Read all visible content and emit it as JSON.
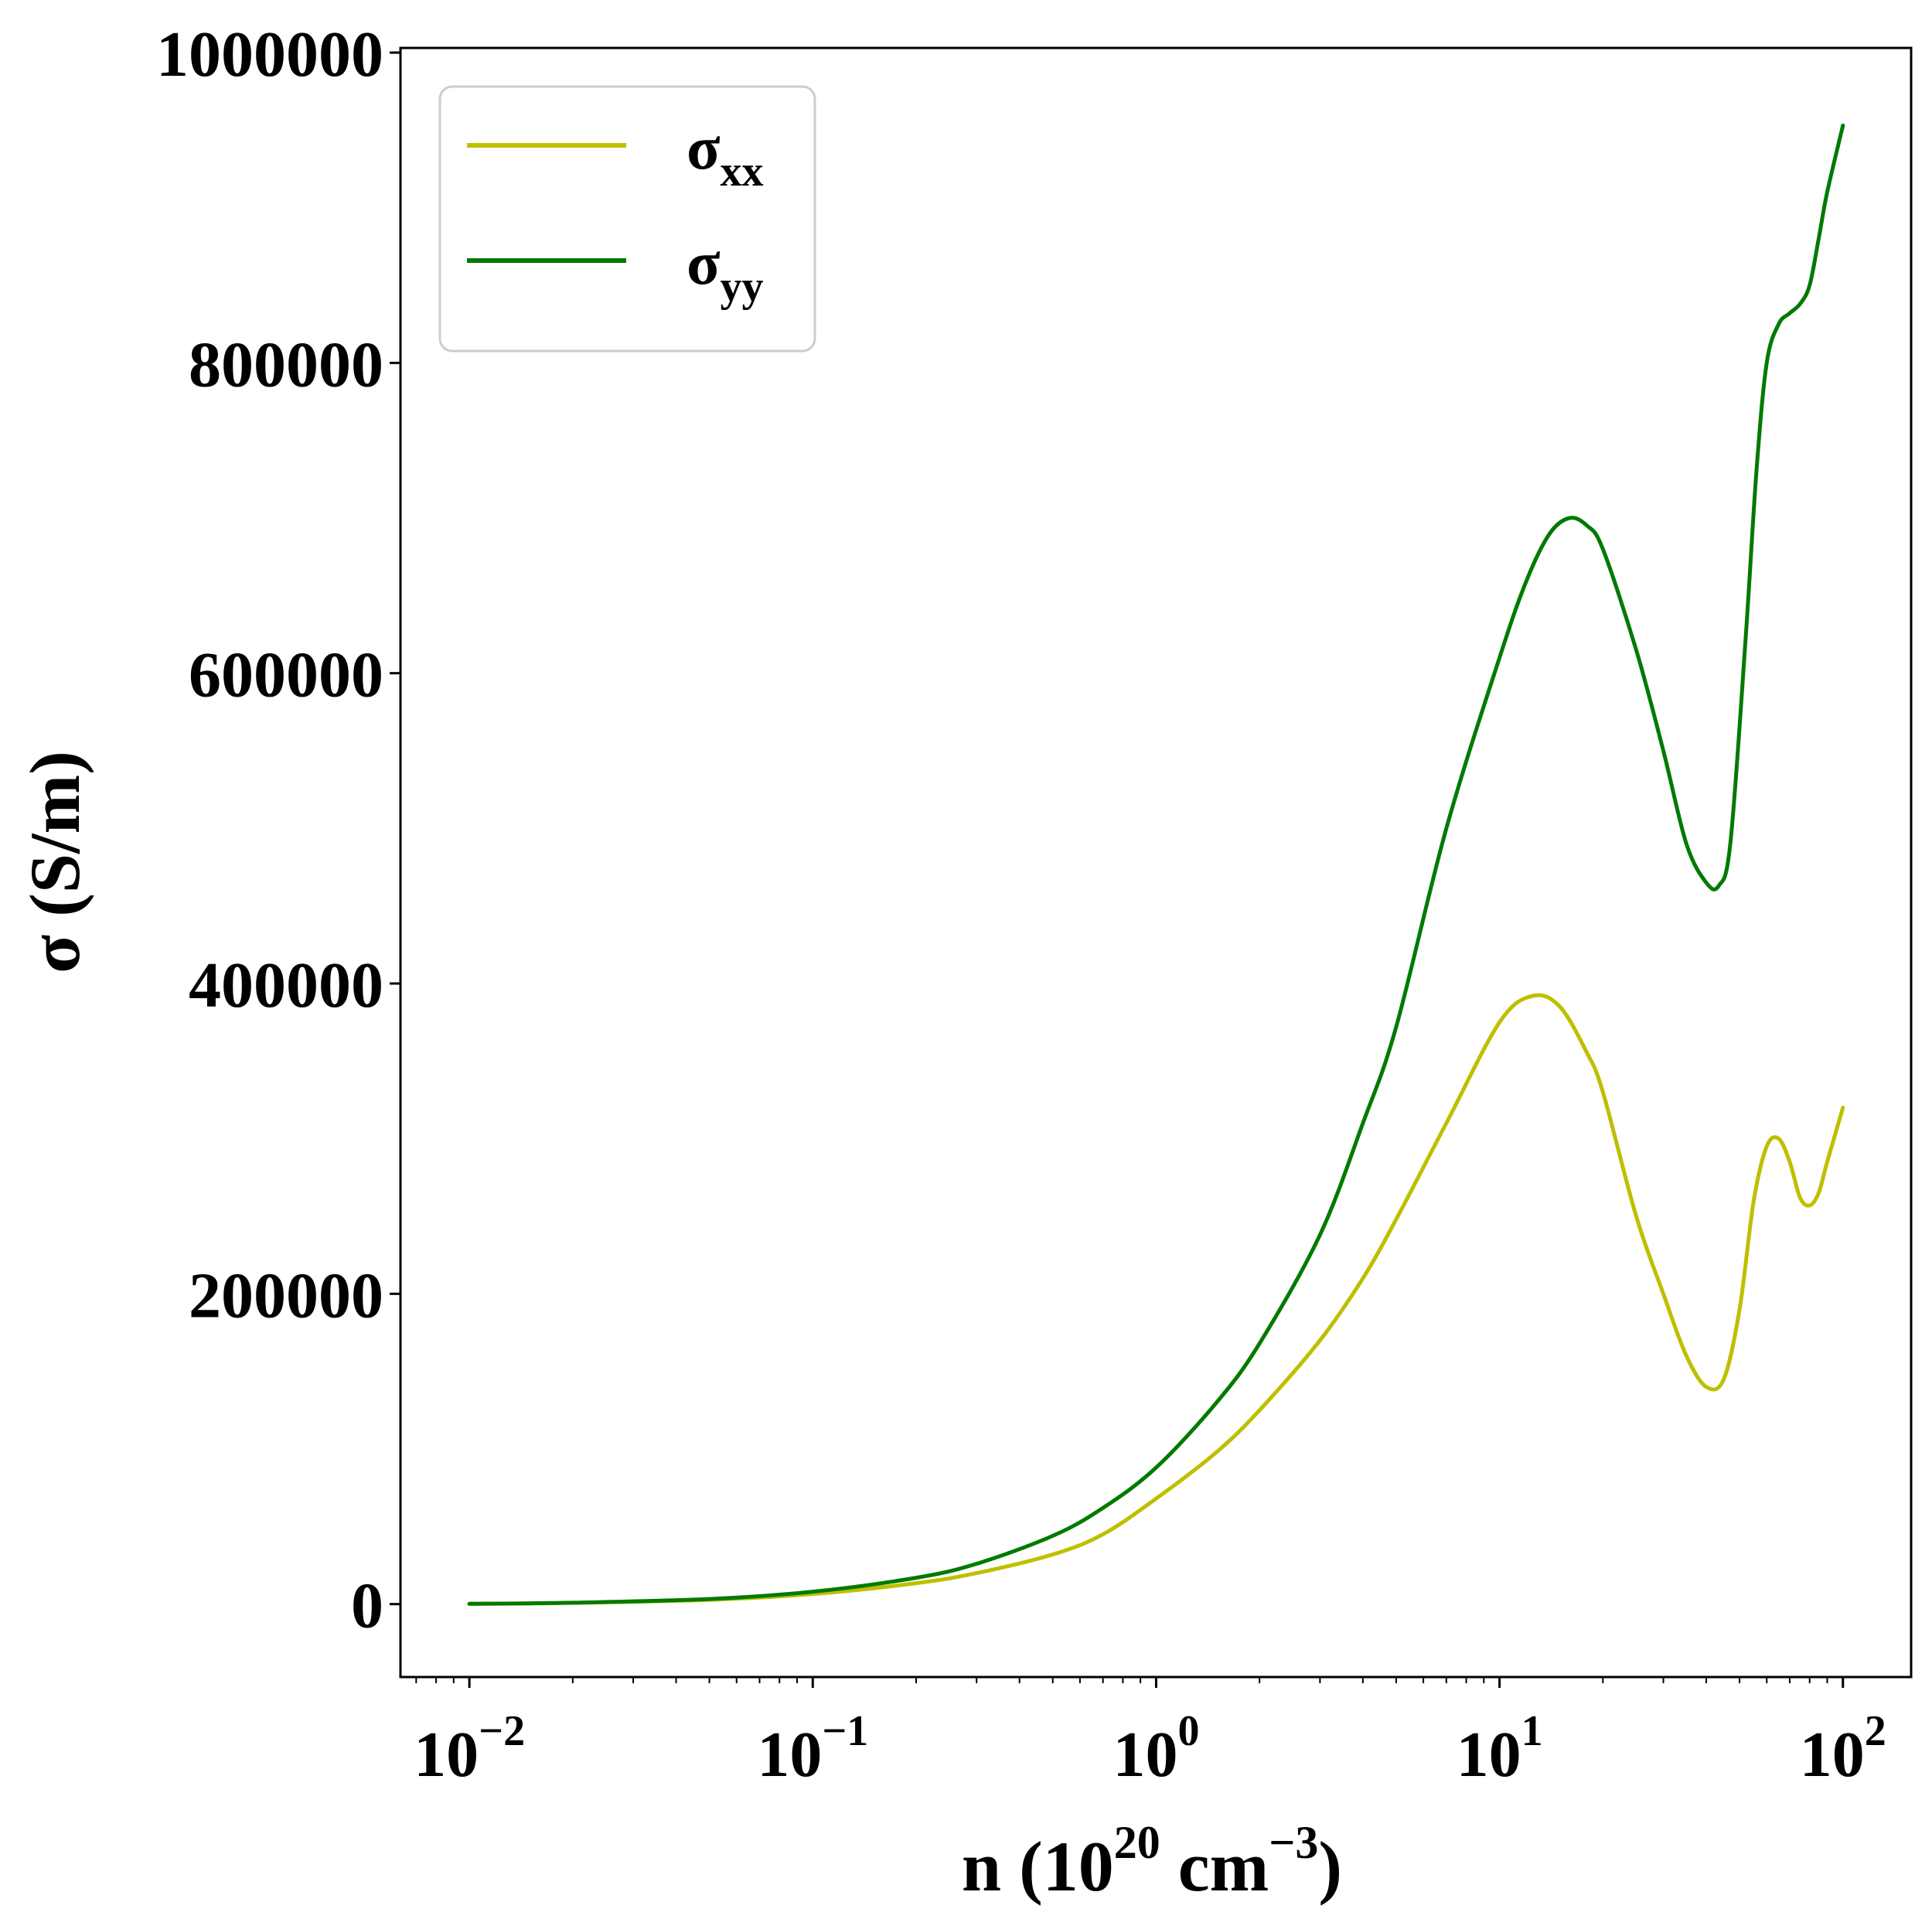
{
  "chart_data": {
    "type": "line",
    "xscale": "log",
    "xlabel": {
      "base": "n (10",
      "exp1": "20",
      "mid": " cm",
      "exp2": "−3",
      "tail": ")"
    },
    "ylabel": "σ (S/m)",
    "xlim": [
      0.0063,
      158
    ],
    "ylim": [
      -47000,
      1003000
    ],
    "grid": false,
    "legend_position": "top-left",
    "y_ticks": [
      {
        "value": 0,
        "label": "0"
      },
      {
        "value": 200000,
        "label": "200000"
      },
      {
        "value": 400000,
        "label": "400000"
      },
      {
        "value": 600000,
        "label": "600000"
      },
      {
        "value": 800000,
        "label": "800000"
      },
      {
        "value": 1000000,
        "label": "1000000"
      }
    ],
    "x_ticks": [
      {
        "value": 0.01,
        "base": "10",
        "exp": "−2"
      },
      {
        "value": 0.1,
        "base": "10",
        "exp": "−1"
      },
      {
        "value": 1,
        "base": "10",
        "exp": "0"
      },
      {
        "value": 10,
        "base": "10",
        "exp": "1"
      },
      {
        "value": 100,
        "base": "10",
        "exp": "2"
      }
    ],
    "series": [
      {
        "name": "σ",
        "name_sub": "xx",
        "color": "#bfbf00",
        "points": [
          [
            0.01,
            200
          ],
          [
            0.02,
            800
          ],
          [
            0.05,
            2800
          ],
          [
            0.1,
            6500
          ],
          [
            0.2,
            13500
          ],
          [
            0.3,
            20000
          ],
          [
            0.5,
            32000
          ],
          [
            0.7,
            45000
          ],
          [
            1.0,
            68000
          ],
          [
            1.5,
            98000
          ],
          [
            2.0,
            125000
          ],
          [
            3.0,
            170000
          ],
          [
            4.0,
            210000
          ],
          [
            5.0,
            248000
          ],
          [
            7.0,
            310000
          ],
          [
            10.0,
            375000
          ],
          [
            12.5,
            392000
          ],
          [
            15.0,
            385000
          ],
          [
            18.0,
            355000
          ],
          [
            20.0,
            330000
          ],
          [
            25.0,
            250000
          ],
          [
            30.0,
            200000
          ],
          [
            35.0,
            160000
          ],
          [
            40.0,
            140000
          ],
          [
            45.0,
            145000
          ],
          [
            50.0,
            190000
          ],
          [
            55.0,
            260000
          ],
          [
            60.0,
            295000
          ],
          [
            65.0,
            300000
          ],
          [
            70.0,
            285000
          ],
          [
            75.0,
            262000
          ],
          [
            80.0,
            257000
          ],
          [
            85.0,
            265000
          ],
          [
            90.0,
            285000
          ],
          [
            100.0,
            320000
          ]
        ]
      },
      {
        "name": "σ",
        "name_sub": "yy",
        "color": "#007a00",
        "points": [
          [
            0.01,
            200
          ],
          [
            0.02,
            900
          ],
          [
            0.05,
            3300
          ],
          [
            0.1,
            8000
          ],
          [
            0.2,
            17000
          ],
          [
            0.3,
            26000
          ],
          [
            0.5,
            44000
          ],
          [
            0.7,
            62000
          ],
          [
            1.0,
            88000
          ],
          [
            1.5,
            130000
          ],
          [
            2.0,
            168000
          ],
          [
            3.0,
            238000
          ],
          [
            4.0,
            310000
          ],
          [
            5.0,
            372000
          ],
          [
            7.0,
            500000
          ],
          [
            10.0,
            610000
          ],
          [
            12.0,
            660000
          ],
          [
            14.0,
            690000
          ],
          [
            16.0,
            700000
          ],
          [
            18.0,
            695000
          ],
          [
            20.0,
            680000
          ],
          [
            25.0,
            615000
          ],
          [
            30.0,
            550000
          ],
          [
            35.0,
            490000
          ],
          [
            40.0,
            465000
          ],
          [
            43.5,
            463000
          ],
          [
            47.0,
            490000
          ],
          [
            52.0,
            620000
          ],
          [
            56.0,
            730000
          ],
          [
            60.0,
            800000
          ],
          [
            65.0,
            825000
          ],
          [
            70.0,
            832000
          ],
          [
            75.0,
            838000
          ],
          [
            80.0,
            850000
          ],
          [
            85.0,
            880000
          ],
          [
            90.0,
            910000
          ],
          [
            100.0,
            953000
          ]
        ]
      }
    ]
  }
}
